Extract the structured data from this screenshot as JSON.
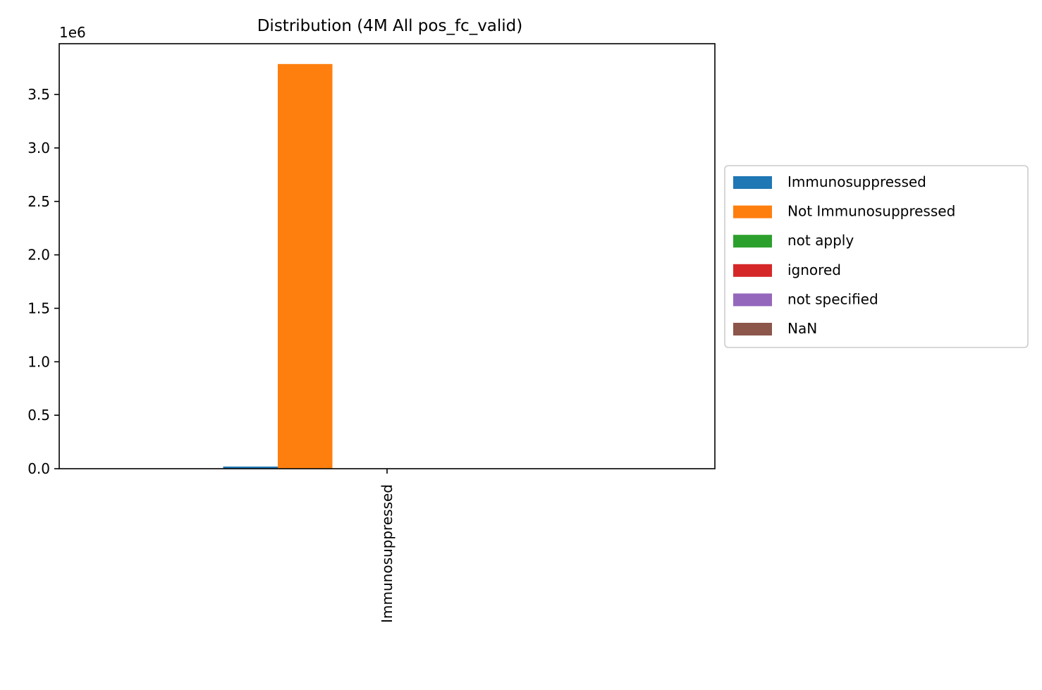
{
  "chart_data": {
    "type": "bar",
    "title": "Distribution (4M All pos_fc_valid)",
    "xlabel": "",
    "ylabel": "",
    "categories": [
      "Immunosuppressed"
    ],
    "series": [
      {
        "name": "Immunosuppressed",
        "color": "#1f77b4",
        "values": [
          20000
        ]
      },
      {
        "name": "Not Immunosuppressed",
        "color": "#ff7f0e",
        "values": [
          3785000
        ]
      },
      {
        "name": "not apply",
        "color": "#2ca02c",
        "values": [
          0
        ]
      },
      {
        "name": "ignored",
        "color": "#d62728",
        "values": [
          0
        ]
      },
      {
        "name": "not specified",
        "color": "#9467bd",
        "values": [
          0
        ]
      },
      {
        "name": "NaN",
        "color": "#8c564b",
        "values": [
          0
        ]
      }
    ],
    "ylim": [
      0,
      3975000
    ],
    "yticks": [
      0,
      500000,
      1000000,
      1500000,
      2000000,
      2500000,
      3000000,
      3500000
    ],
    "ytick_labels": [
      "0.0",
      "0.5",
      "1.0",
      "1.5",
      "2.0",
      "2.5",
      "3.0",
      "3.5"
    ],
    "y_offset_label": "1e6",
    "legend_placement": "center-right-outside",
    "grid": false
  }
}
